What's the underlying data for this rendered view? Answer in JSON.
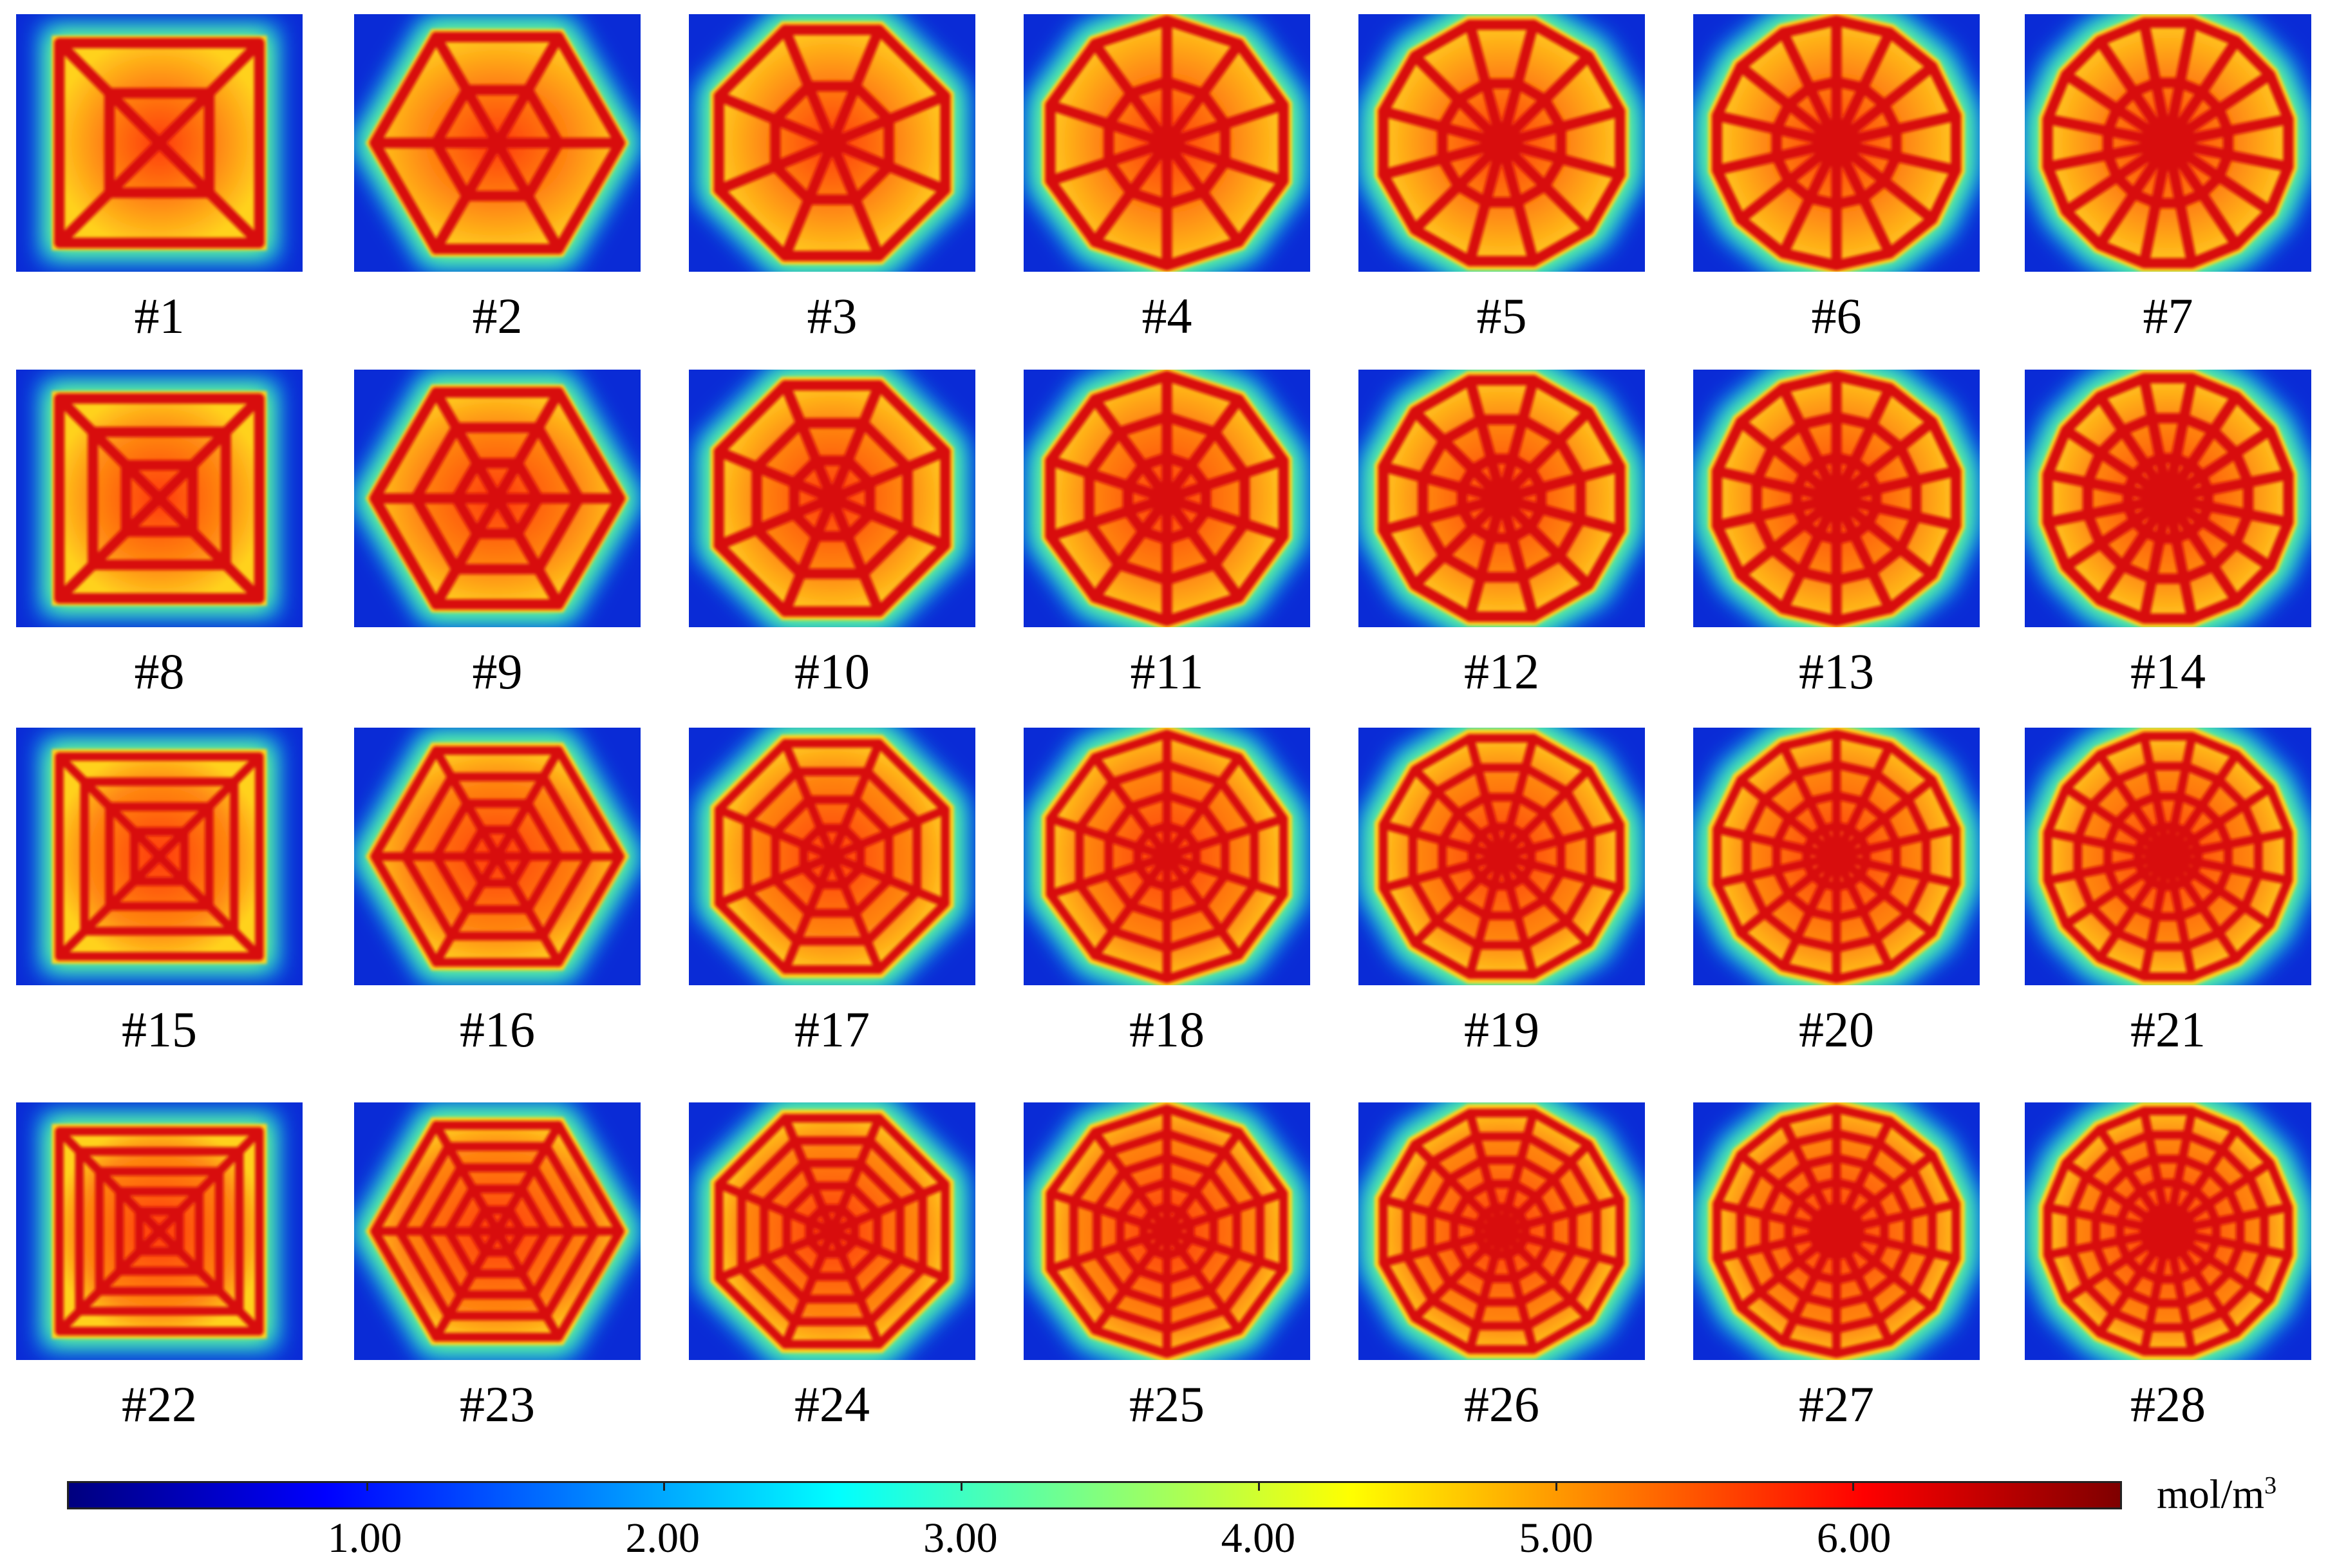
{
  "figure": {
    "rows": 4,
    "cols": 7,
    "panels": [
      {
        "label": "#1",
        "sides": 4,
        "rings": 2
      },
      {
        "label": "#2",
        "sides": 6,
        "rings": 2
      },
      {
        "label": "#3",
        "sides": 8,
        "rings": 2
      },
      {
        "label": "#4",
        "sides": 10,
        "rings": 2
      },
      {
        "label": "#5",
        "sides": 12,
        "rings": 2
      },
      {
        "label": "#6",
        "sides": 14,
        "rings": 2
      },
      {
        "label": "#7",
        "sides": 16,
        "rings": 2
      },
      {
        "label": "#8",
        "sides": 4,
        "rings": 3
      },
      {
        "label": "#9",
        "sides": 6,
        "rings": 3
      },
      {
        "label": "#10",
        "sides": 8,
        "rings": 3
      },
      {
        "label": "#11",
        "sides": 10,
        "rings": 3
      },
      {
        "label": "#12",
        "sides": 12,
        "rings": 3
      },
      {
        "label": "#13",
        "sides": 14,
        "rings": 3
      },
      {
        "label": "#14",
        "sides": 16,
        "rings": 3
      },
      {
        "label": "#15",
        "sides": 4,
        "rings": 4
      },
      {
        "label": "#16",
        "sides": 6,
        "rings": 4
      },
      {
        "label": "#17",
        "sides": 8,
        "rings": 4
      },
      {
        "label": "#18",
        "sides": 10,
        "rings": 4
      },
      {
        "label": "#19",
        "sides": 12,
        "rings": 4
      },
      {
        "label": "#20",
        "sides": 14,
        "rings": 4
      },
      {
        "label": "#21",
        "sides": 16,
        "rings": 4
      },
      {
        "label": "#22",
        "sides": 4,
        "rings": 5
      },
      {
        "label": "#23",
        "sides": 6,
        "rings": 5
      },
      {
        "label": "#24",
        "sides": 8,
        "rings": 5
      },
      {
        "label": "#25",
        "sides": 10,
        "rings": 5
      },
      {
        "label": "#26",
        "sides": 12,
        "rings": 5
      },
      {
        "label": "#27",
        "sides": 14,
        "rings": 5
      },
      {
        "label": "#28",
        "sides": 16,
        "rings": 5
      }
    ]
  },
  "colorbar": {
    "unit": "mol/m",
    "unit_exponent": "3",
    "ticks": [
      {
        "value": 1,
        "label": "1.00"
      },
      {
        "value": 2,
        "label": "2.00"
      },
      {
        "value": 3,
        "label": "3.00"
      },
      {
        "value": 4,
        "label": "4.00"
      },
      {
        "value": 5,
        "label": "5.00"
      },
      {
        "value": 6,
        "label": "6.00"
      }
    ],
    "range": [
      0,
      6.9
    ],
    "colors": [
      "#00007f",
      "#0000ff",
      "#0080ff",
      "#00ffff",
      "#80ff80",
      "#ffff00",
      "#ff8000",
      "#ff0000",
      "#7f0000"
    ]
  },
  "style": {
    "background_low": "#0a2bd6",
    "halo_mid": "#00d4ff",
    "fill_edge": "#ffd21f",
    "fill_core": "#ff3b08",
    "strut": "#d80f0f"
  }
}
